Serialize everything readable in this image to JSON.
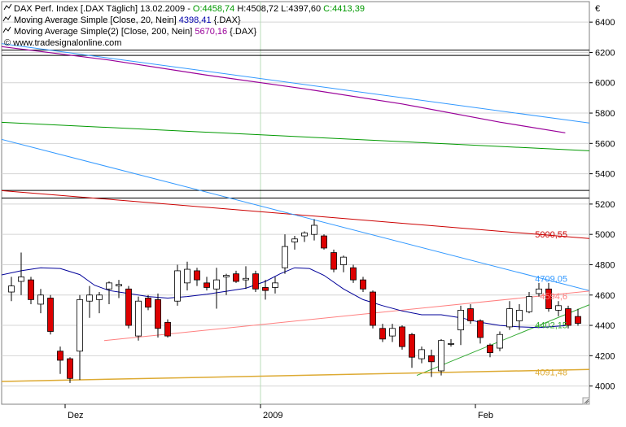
{
  "chart_data": {
    "type": "candlestick",
    "currency_symbol": "€",
    "legend": [
      {
        "marker": "chart-icon",
        "title": "DAX Perf. Index [.DAX  Täglich] 13.02.2009 -",
        "values": [
          {
            "text": "O:4458,74",
            "color": "#009900"
          },
          {
            "text": "H:4508,72",
            "color": "#000000"
          },
          {
            "text": "L:4397,60",
            "color": "#000000"
          },
          {
            "text": "C:4413,39",
            "color": "#009900"
          }
        ]
      },
      {
        "marker": "line-icon",
        "title": "Moving Average Simple [Close, 20, Nein]",
        "values": [
          {
            "text": "4398,41",
            "color": "#0000aa"
          },
          {
            "text": "{.DAX}",
            "color": "#000000"
          }
        ]
      },
      {
        "marker": "line-icon",
        "title": "Moving Average Simple(2) [Close, 200, Nein]",
        "values": [
          {
            "text": "5670,16",
            "color": "#990099"
          },
          {
            "text": "{.DAX}",
            "color": "#000000"
          }
        ]
      }
    ],
    "copyright": "© www.tradesignalonline.com",
    "y_ticks": [
      4000,
      4200,
      4400,
      4600,
      4800,
      5000,
      5200,
      5400,
      5600,
      5800,
      6000,
      6200,
      6400
    ],
    "ylim": [
      3880,
      6535
    ],
    "x_ticks": [
      {
        "label": "Dez",
        "index": 5.5
      },
      {
        "label": "2009",
        "index": 25.5
      },
      {
        "label": "Feb",
        "index": 47.5
      }
    ],
    "x_range": [
      -1.2,
      59.7
    ],
    "month_separator_index": 25.5,
    "candles": [
      {
        "o": 4620,
        "h": 4720,
        "l": 4560,
        "c": 4660
      },
      {
        "o": 4690,
        "h": 4880,
        "l": 4600,
        "c": 4720
      },
      {
        "o": 4700,
        "h": 4720,
        "l": 4540,
        "c": 4570
      },
      {
        "o": 4540,
        "h": 4640,
        "l": 4480,
        "c": 4600
      },
      {
        "o": 4580,
        "h": 4600,
        "l": 4340,
        "c": 4360
      },
      {
        "o": 4230,
        "h": 4260,
        "l": 4080,
        "c": 4170
      },
      {
        "o": 4180,
        "h": 4190,
        "l": 4020,
        "c": 4050
      },
      {
        "o": 4230,
        "h": 4600,
        "l": 4040,
        "c": 4570
      },
      {
        "o": 4560,
        "h": 4660,
        "l": 4450,
        "c": 4600
      },
      {
        "o": 4570,
        "h": 4620,
        "l": 4480,
        "c": 4600
      },
      {
        "o": 4640,
        "h": 4690,
        "l": 4540,
        "c": 4680
      },
      {
        "o": 4660,
        "h": 4700,
        "l": 4580,
        "c": 4670
      },
      {
        "o": 4640,
        "h": 4660,
        "l": 4380,
        "c": 4400
      },
      {
        "o": 4330,
        "h": 4590,
        "l": 4300,
        "c": 4560
      },
      {
        "o": 4580,
        "h": 4600,
        "l": 4500,
        "c": 4520
      },
      {
        "o": 4570,
        "h": 4610,
        "l": 4320,
        "c": 4380
      },
      {
        "o": 4420,
        "h": 4440,
        "l": 4320,
        "c": 4330
      },
      {
        "o": 4560,
        "h": 4800,
        "l": 4530,
        "c": 4760
      },
      {
        "o": 4680,
        "h": 4820,
        "l": 4630,
        "c": 4770
      },
      {
        "o": 4760,
        "h": 4780,
        "l": 4660,
        "c": 4700
      },
      {
        "o": 4680,
        "h": 4720,
        "l": 4630,
        "c": 4650
      },
      {
        "o": 4640,
        "h": 4780,
        "l": 4510,
        "c": 4700
      },
      {
        "o": 4720,
        "h": 4740,
        "l": 4600,
        "c": 4730
      },
      {
        "o": 4740,
        "h": 4760,
        "l": 4680,
        "c": 4690
      },
      {
        "o": 4700,
        "h": 4790,
        "l": 4640,
        "c": 4710
      },
      {
        "o": 4740,
        "h": 4760,
        "l": 4620,
        "c": 4640
      },
      {
        "o": 4650,
        "h": 4700,
        "l": 4570,
        "c": 4630
      },
      {
        "o": 4650,
        "h": 4720,
        "l": 4610,
        "c": 4680
      },
      {
        "o": 4780,
        "h": 5000,
        "l": 4740,
        "c": 4920
      },
      {
        "o": 4950,
        "h": 4990,
        "l": 4900,
        "c": 4970
      },
      {
        "o": 4990,
        "h": 5020,
        "l": 4950,
        "c": 5010
      },
      {
        "o": 5000,
        "h": 5100,
        "l": 4960,
        "c": 5060
      },
      {
        "o": 4990,
        "h": 5000,
        "l": 4900,
        "c": 4910
      },
      {
        "o": 4880,
        "h": 4900,
        "l": 4750,
        "c": 4770
      },
      {
        "o": 4800,
        "h": 4860,
        "l": 4750,
        "c": 4850
      },
      {
        "o": 4780,
        "h": 4800,
        "l": 4680,
        "c": 4700
      },
      {
        "o": 4700,
        "h": 4720,
        "l": 4620,
        "c": 4640
      },
      {
        "o": 4620,
        "h": 4630,
        "l": 4380,
        "c": 4400
      },
      {
        "o": 4380,
        "h": 4410,
        "l": 4290,
        "c": 4310
      },
      {
        "o": 4330,
        "h": 4410,
        "l": 4290,
        "c": 4380
      },
      {
        "o": 4390,
        "h": 4400,
        "l": 4240,
        "c": 4260
      },
      {
        "o": 4340,
        "h": 4350,
        "l": 4120,
        "c": 4190
      },
      {
        "o": 4180,
        "h": 4260,
        "l": 4150,
        "c": 4240
      },
      {
        "o": 4200,
        "h": 4240,
        "l": 4060,
        "c": 4160
      },
      {
        "o": 4100,
        "h": 4310,
        "l": 4070,
        "c": 4300
      },
      {
        "o": 4280,
        "h": 4310,
        "l": 4260,
        "c": 4280
      },
      {
        "o": 4370,
        "h": 4530,
        "l": 4270,
        "c": 4500
      },
      {
        "o": 4510,
        "h": 4540,
        "l": 4410,
        "c": 4430
      },
      {
        "o": 4430,
        "h": 4440,
        "l": 4280,
        "c": 4320
      },
      {
        "o": 4270,
        "h": 4280,
        "l": 4190,
        "c": 4220
      },
      {
        "o": 4250,
        "h": 4360,
        "l": 4230,
        "c": 4340
      },
      {
        "o": 4390,
        "h": 4560,
        "l": 4370,
        "c": 4510
      },
      {
        "o": 4430,
        "h": 4540,
        "l": 4370,
        "c": 4500
      },
      {
        "o": 4490,
        "h": 4620,
        "l": 4480,
        "c": 4590
      },
      {
        "o": 4610,
        "h": 4680,
        "l": 4590,
        "c": 4640
      },
      {
        "o": 4640,
        "h": 4680,
        "l": 4490,
        "c": 4510
      },
      {
        "o": 4500,
        "h": 4560,
        "l": 4460,
        "c": 4530
      },
      {
        "o": 4510,
        "h": 4530,
        "l": 4380,
        "c": 4400
      },
      {
        "o": 4458.74,
        "h": 4508.72,
        "l": 4397.6,
        "c": 4413.39
      }
    ],
    "ma20": [
      [
        -1.2,
        4730
      ],
      [
        1,
        4760
      ],
      [
        3,
        4780
      ],
      [
        5,
        4775
      ],
      [
        7,
        4735
      ],
      [
        8.5,
        4665
      ],
      [
        10,
        4630
      ],
      [
        12,
        4610
      ],
      [
        14,
        4590
      ],
      [
        16,
        4580
      ],
      [
        18,
        4590
      ],
      [
        20,
        4605
      ],
      [
        22,
        4625
      ],
      [
        24,
        4645
      ],
      [
        26,
        4690
      ],
      [
        27.5,
        4740
      ],
      [
        29,
        4780
      ],
      [
        30.5,
        4775
      ],
      [
        32,
        4730
      ],
      [
        34,
        4640
      ],
      [
        36,
        4570
      ],
      [
        38,
        4530
      ],
      [
        40,
        4495
      ],
      [
        42,
        4470
      ],
      [
        44,
        4470
      ],
      [
        46,
        4450
      ],
      [
        48,
        4420
      ],
      [
        50,
        4400
      ],
      [
        52,
        4390
      ],
      [
        54,
        4385
      ],
      [
        56.7,
        4398
      ]
    ],
    "ma200": [
      [
        -1.2,
        6240
      ],
      [
        10,
        6150
      ],
      [
        20,
        6050
      ],
      [
        30,
        5960
      ],
      [
        40,
        5860
      ],
      [
        50,
        5740
      ],
      [
        56.7,
        5670
      ]
    ],
    "lines": [
      {
        "name": "horizontal-line-6220",
        "p1": [
          -1.2,
          6215
        ],
        "p2": [
          59.7,
          6215
        ],
        "color": "#000000",
        "width": 1
      },
      {
        "name": "horizontal-line-6190",
        "p1": [
          -1.2,
          6180
        ],
        "p2": [
          59.7,
          6180
        ],
        "color": "#000000",
        "width": 1
      },
      {
        "name": "horizontal-line-5290",
        "p1": [
          -1.2,
          5290
        ],
        "p2": [
          59.7,
          5290
        ],
        "color": "#000000",
        "width": 1
      },
      {
        "name": "horizontal-line-5240",
        "p1": [
          -1.2,
          5240
        ],
        "p2": [
          59.7,
          5240
        ],
        "color": "#000000",
        "width": 1
      },
      {
        "name": "blue-trendline-upper",
        "p1": [
          -1.2,
          6260
        ],
        "p2": [
          59.7,
          5730
        ],
        "color": "#3399ff",
        "width": 1
      },
      {
        "name": "green-trendline-upper",
        "p1": [
          -1.2,
          5740
        ],
        "p2": [
          59.7,
          5550
        ],
        "color": "#009900",
        "width": 1
      },
      {
        "name": "red-trendline-upper",
        "p1": [
          -1.2,
          5290
        ],
        "p2": [
          59.7,
          4970
        ],
        "color": "#cc0000",
        "width": 1
      },
      {
        "name": "blue-trendline-lower",
        "p1": [
          -1.2,
          5630
        ],
        "p2": [
          59.7,
          4620
        ],
        "color": "#3399ff",
        "width": 1
      },
      {
        "name": "pink-trendline",
        "p1": [
          9.5,
          4300
        ],
        "p2": [
          59.7,
          4630
        ],
        "color": "#ff8080",
        "width": 1
      },
      {
        "name": "green-trendline-lower",
        "p1": [
          41.5,
          4070
        ],
        "p2": [
          59.7,
          4550
        ],
        "color": "#33aa33",
        "width": 1
      },
      {
        "name": "orange-trendline",
        "p1": [
          -1.2,
          4030
        ],
        "p2": [
          59.7,
          4110
        ],
        "color": "#ddaa33",
        "width": 1.5
      }
    ],
    "annotations": [
      {
        "text": "5000,55",
        "value": 5000.55,
        "color": "#cc0000"
      },
      {
        "text": "4709,05",
        "value": 4709.05,
        "color": "#3399ff"
      },
      {
        "text": "4594,6",
        "value": 4594.6,
        "color": "#ff8080"
      },
      {
        "text": "4402,15",
        "value": 4402.15,
        "color": "#33aa33"
      },
      {
        "text": "4091,48",
        "value": 4091.48,
        "color": "#ddaa33"
      }
    ],
    "colors": {
      "up_candle": "#ffffff",
      "down_candle": "#dd0000",
      "candle_outline": "#000000",
      "ma20": "#000099",
      "ma200": "#990099",
      "grid": "#d4d4d4",
      "month_separator": "#b8dcb8"
    },
    "grid": true
  }
}
